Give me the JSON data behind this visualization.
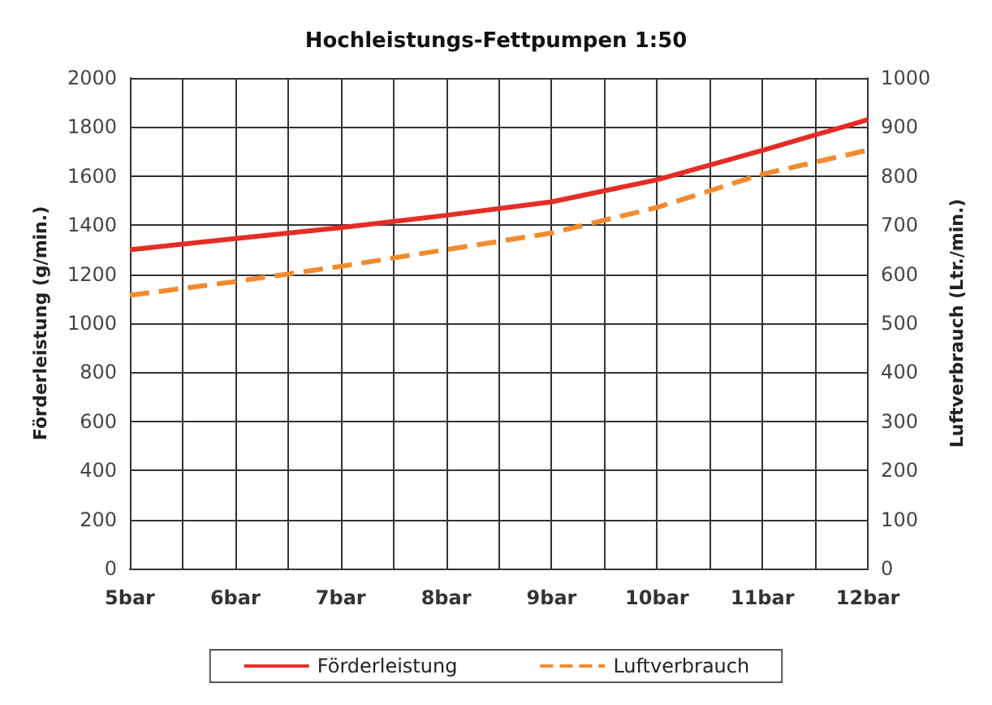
{
  "chart_data": {
    "type": "line",
    "title": "Hochleistungs-Fettpumpen 1:50",
    "ylabel": "Förderleistung (g/min.)",
    "y2label": "Luftverbrauch (Ltr./min.)",
    "x": [
      5,
      6,
      7,
      8,
      9,
      10,
      11,
      12
    ],
    "series": [
      {
        "name": "Förderleistung",
        "color": "#e52d27",
        "values": [
          1300,
          1345,
          1390,
          1440,
          1495,
          1585,
          1705,
          1830
        ],
        "line_style": "solid"
      },
      {
        "name": "Luftverbrauch",
        "color": "#f28a2e",
        "values": [
          557,
          585,
          616,
          650,
          684,
          736,
          804,
          853
        ],
        "axis": "y2",
        "line_style": "dashed"
      }
    ],
    "xlim": [
      5,
      12
    ],
    "xticks": [
      {
        "value": 5,
        "label": "5bar"
      },
      {
        "value": 5.5,
        "label": null
      },
      {
        "value": 6,
        "label": "6bar"
      },
      {
        "value": 6.5,
        "label": null
      },
      {
        "value": 7,
        "label": "7bar"
      },
      {
        "value": 7.5,
        "label": null
      },
      {
        "value": 8,
        "label": "8bar"
      },
      {
        "value": 8.5,
        "label": null
      },
      {
        "value": 9,
        "label": "9bar"
      },
      {
        "value": 9.5,
        "label": null
      },
      {
        "value": 10,
        "label": "10bar"
      },
      {
        "value": 10.5,
        "label": null
      },
      {
        "value": 11,
        "label": "11bar"
      },
      {
        "value": 11.5,
        "label": null
      },
      {
        "value": 12,
        "label": "12bar"
      }
    ],
    "ylim": [
      0,
      2000
    ],
    "yticks": [
      0,
      200,
      400,
      600,
      800,
      1000,
      1200,
      1400,
      1600,
      1800,
      2000
    ],
    "y2lim": [
      0,
      1000
    ],
    "y2ticks": [
      0,
      100,
      200,
      300,
      400,
      500,
      600,
      700,
      800,
      900,
      1000
    ],
    "grid": true,
    "legend": "bottom",
    "marker": "none"
  }
}
